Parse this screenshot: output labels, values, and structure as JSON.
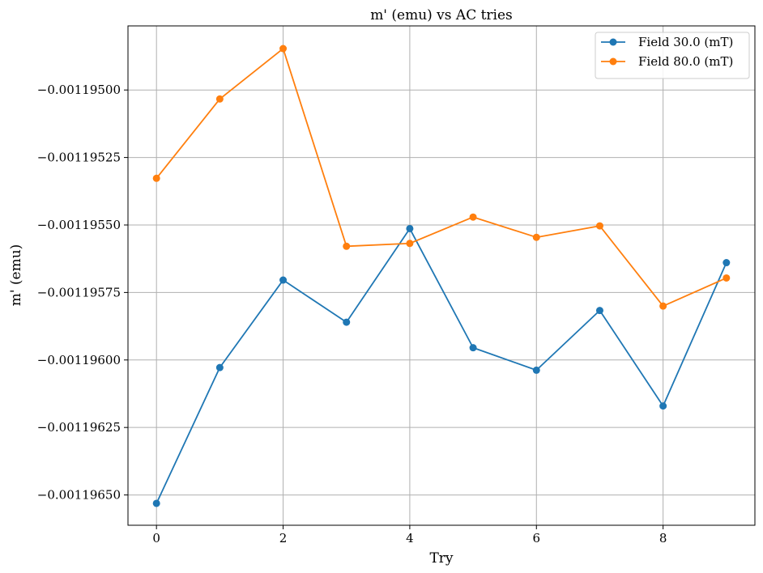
{
  "chart_data": {
    "type": "line",
    "title": "m' (emu) vs  AC tries",
    "xlabel": "Try",
    "ylabel": "m' (emu)",
    "xlim": [
      -0.45,
      9.45
    ],
    "ylim": [
      -0.0011966122,
      -0.0011947626
    ],
    "xticks": [
      0,
      2,
      4,
      6,
      8
    ],
    "xtick_labels": [
      "0",
      "2",
      "4",
      "6",
      "8"
    ],
    "yticks": [
      -0.0011965,
      -0.00119625,
      -0.001196,
      -0.00119575,
      -0.0011955,
      -0.00119525,
      -0.001195
    ],
    "ytick_labels": [
      "−0.00119650",
      "−0.00119625",
      "−0.00119600",
      "−0.00119575",
      "−0.00119550",
      "−0.00119525",
      "−0.00119500"
    ],
    "grid": true,
    "legend_position": "top-right",
    "x": [
      0,
      1,
      2,
      3,
      4,
      5,
      6,
      7,
      8,
      9
    ],
    "series": [
      {
        "name": "Field 30.0 (mT)",
        "color": "#1f77b4",
        "values": [
          -0.0011965311,
          -0.0011960281,
          -0.001195704,
          -0.0011958601,
          -0.0011955134,
          -0.0011959546,
          -0.0011960378,
          -0.0011958167,
          -0.0011961704,
          -0.0011956395
        ]
      },
      {
        "name": "Field 80.0 (mT)",
        "color": "#ff7f0e",
        "values": [
          -0.0011953271,
          -0.0011950333,
          -0.0011948467,
          -0.0011955789,
          -0.0011955683,
          -0.0011954707,
          -0.0011955456,
          -0.0011955033,
          -0.0011958003,
          -0.0011956963
        ]
      }
    ]
  }
}
